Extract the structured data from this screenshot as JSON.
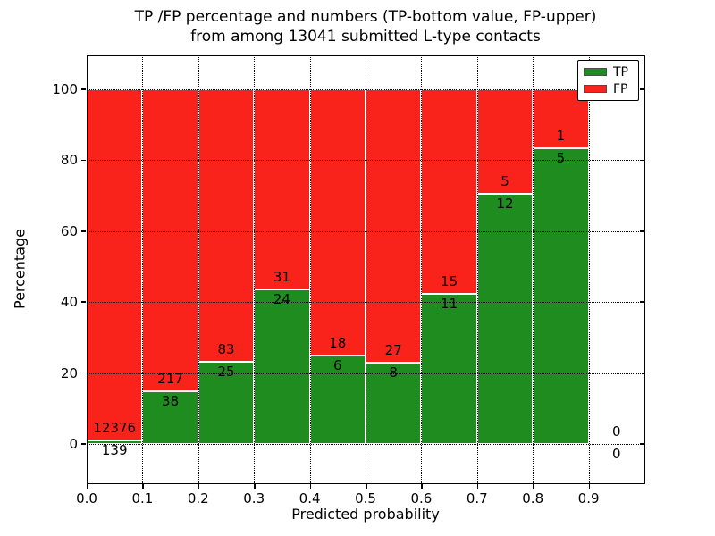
{
  "title": {
    "line1": "TP /FP percentage and numbers (TP-bottom value, FP-upper)",
    "line2": "from among 13041 submitted L-type contacts"
  },
  "chart_data": {
    "type": "bar",
    "stacked": true,
    "normalized_to_percent": true,
    "title": "TP /FP percentage and numbers (TP-bottom value, FP-upper)\nfrom among 13041 submitted L-type contacts",
    "total_submitted": 13041,
    "xlabel": "Predicted probability",
    "ylabel": "Percentage",
    "xlim": [
      0.0,
      1.0
    ],
    "ylim": [
      -12,
      110
    ],
    "xtick_values": [
      0.0,
      0.1,
      0.2,
      0.3,
      0.4,
      0.5,
      0.6,
      0.7,
      0.8,
      0.9
    ],
    "xtick_labels": [
      "0.0",
      "0.1",
      "0.2",
      "0.3",
      "0.4",
      "0.5",
      "0.6",
      "0.7",
      "0.8",
      "0.9"
    ],
    "ytick_values": [
      0,
      20,
      40,
      60,
      80,
      100
    ],
    "ytick_labels": [
      "0",
      "20",
      "40",
      "60",
      "80",
      "100"
    ],
    "grid": "dotted black, on ticks",
    "legend": {
      "position": "upper right",
      "entries": [
        {
          "label": "TP",
          "color": "#1e8c1e"
        },
        {
          "label": "FP",
          "color": "#f9231b"
        }
      ]
    },
    "colors": {
      "tp_green": "#1e8c1e",
      "fp_red": "#f9231b",
      "bar_edge": "#ffffff"
    },
    "annotation_note": "TP-bottom value, FP-upper",
    "bins": [
      {
        "range": [
          0.0,
          0.1
        ],
        "tp": 139,
        "fp": 12376
      },
      {
        "range": [
          0.1,
          0.2
        ],
        "tp": 38,
        "fp": 217
      },
      {
        "range": [
          0.2,
          0.3
        ],
        "tp": 25,
        "fp": 83
      },
      {
        "range": [
          0.3,
          0.4
        ],
        "tp": 24,
        "fp": 31
      },
      {
        "range": [
          0.4,
          0.5
        ],
        "tp": 6,
        "fp": 18
      },
      {
        "range": [
          0.5,
          0.6
        ],
        "tp": 8,
        "fp": 27
      },
      {
        "range": [
          0.6,
          0.7
        ],
        "tp": 11,
        "fp": 15
      },
      {
        "range": [
          0.7,
          0.8
        ],
        "tp": 12,
        "fp": 5
      },
      {
        "range": [
          0.8,
          0.9
        ],
        "tp": 5,
        "fp": 1
      },
      {
        "range": [
          0.9,
          1.0
        ],
        "tp": 0,
        "fp": 0
      }
    ]
  }
}
